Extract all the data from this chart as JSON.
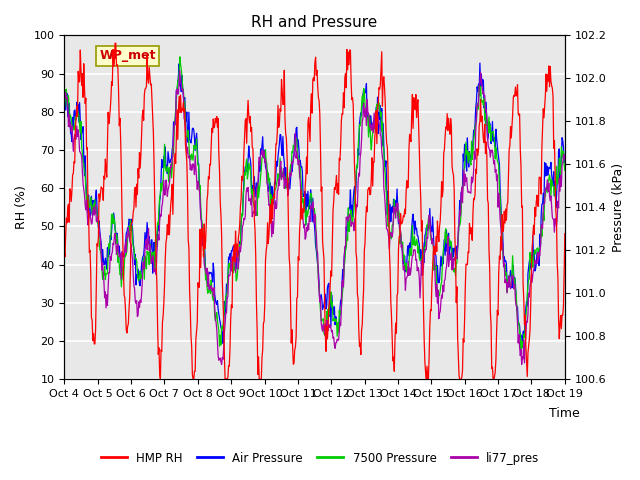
{
  "title": "RH and Pressure",
  "xlabel": "Time",
  "ylabel_left": "RH (%)",
  "ylabel_right": "Pressure (kPa)",
  "ylim_left": [
    10,
    100
  ],
  "ylim_right": [
    100.6,
    102.2
  ],
  "x_tick_labels": [
    "Oct 4",
    "Oct 5",
    "Oct 6",
    "Oct 7",
    "Oct 8",
    "Oct 9",
    "Oct 10",
    "Oct 11",
    "Oct 12",
    "Oct 13",
    "Oct 14",
    "Oct 15",
    "Oct 16",
    "Oct 17",
    "Oct 18",
    "Oct 19"
  ],
  "annotation_text": "WP_met",
  "annotation_color": "#cc0000",
  "annotation_bg": "#ffffcc",
  "annotation_border": "#999900",
  "colors": {
    "HMP_RH": "#ff0000",
    "Air_Pressure": "#0000ff",
    "7500_Pressure": "#00cc00",
    "li77_pres": "#aa00aa"
  },
  "legend_labels": [
    "HMP RH",
    "Air Pressure",
    "7500 Pressure",
    "li77_pres"
  ],
  "line_width": 0.9,
  "background_color": "#e8e8e8",
  "title_fontsize": 11,
  "axis_fontsize": 9,
  "tick_fontsize": 8
}
